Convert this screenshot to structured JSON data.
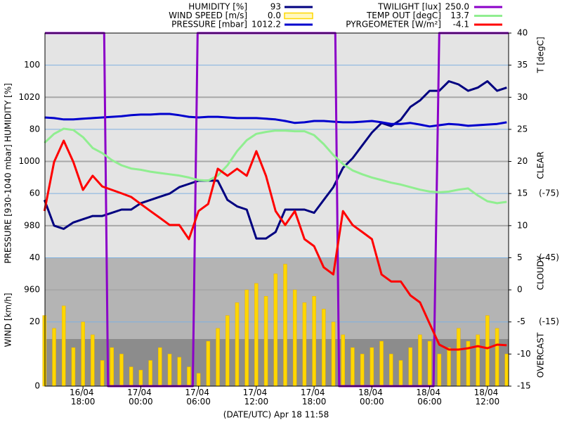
{
  "chart_data": {
    "type": "line",
    "x_label": "(DATE/UTC) Apr 18 11:58",
    "x": [
      14,
      15,
      16,
      17,
      18,
      19,
      20,
      21,
      22,
      23,
      24,
      25,
      26,
      27,
      28,
      29,
      30,
      31,
      32,
      33,
      34,
      35,
      36,
      37,
      38,
      39,
      40,
      41,
      42,
      43,
      44,
      45,
      46,
      47,
      48,
      49,
      50,
      51,
      52,
      53,
      54,
      55,
      56,
      57,
      58,
      59,
      60,
      61,
      62
    ],
    "xlim": [
      14.05,
      62.2
    ],
    "xticks": [
      {
        "value": 18,
        "label": "16/04 18:00"
      },
      {
        "value": 24,
        "label": "17/04 00:00"
      },
      {
        "value": 30,
        "label": "17/04 06:00"
      },
      {
        "value": 36,
        "label": "17/04 12:00"
      },
      {
        "value": 42,
        "label": "17/04 18:00"
      },
      {
        "value": 48,
        "label": "18/04 00:00"
      },
      {
        "value": 54,
        "label": "18/04 06:00"
      },
      {
        "value": 60,
        "label": "18/04 12:00"
      }
    ],
    "axes": {
      "humidity": {
        "title": "HUMIDITY [%]",
        "ylim": [
          0,
          110
        ],
        "yticks": [
          40,
          60,
          80,
          100
        ]
      },
      "pressure": {
        "title": "PRESSURE [930-1040 mbar]",
        "ylim": [
          930,
          1040
        ],
        "yticks": [
          960,
          980,
          1000,
          1020
        ]
      },
      "wind": {
        "title": "WIND [km/h]",
        "ylim": [
          0,
          110
        ],
        "yticks": [
          0,
          20
        ]
      },
      "temp": {
        "title": "T [degC]",
        "ylim": [
          -15,
          40
        ],
        "yticks": [
          40,
          35,
          30,
          25,
          20,
          15,
          10,
          5,
          0,
          -5,
          -10,
          -15
        ]
      },
      "pyr": {
        "ylim": [
          15,
          -150
        ],
        "yticks": [
          {
            "value": -75,
            "label": "(-75)"
          },
          {
            "value": -45,
            "label": "(-45)"
          },
          {
            "value": -15,
            "label": "(-15)"
          }
        ]
      },
      "twilight": {
        "ylim": [
          0,
          250
        ]
      }
    },
    "sky_labels": [
      "CLEAR",
      "CLOUDY",
      "OVERCAST"
    ],
    "series": [
      {
        "name": "HUMIDITY [%]",
        "color": "#000080",
        "axis": "humidity",
        "current": 93,
        "values": [
          58,
          50,
          49,
          51,
          52,
          53,
          53,
          54,
          55,
          55,
          57,
          58,
          59,
          60,
          62,
          63,
          64,
          64,
          64,
          58,
          56,
          55,
          46,
          46,
          48,
          55,
          55,
          55,
          54,
          58,
          62,
          68,
          71,
          75,
          79,
          82,
          81,
          83,
          87,
          89,
          92,
          92,
          95,
          94,
          92,
          93,
          95,
          92,
          93
        ]
      },
      {
        "name": "WIND SPEED [m/s]",
        "color": "#ffd700",
        "axis": "wind",
        "type": "bar",
        "current": 0,
        "current_label": "0.0",
        "values": [
          22,
          18,
          25,
          12,
          20,
          16,
          8,
          12,
          10,
          6,
          5,
          8,
          12,
          10,
          9,
          6,
          4,
          14,
          18,
          22,
          26,
          30,
          32,
          28,
          35,
          38,
          30,
          26,
          28,
          24,
          20,
          16,
          12,
          10,
          12,
          14,
          10,
          8,
          12,
          16,
          14,
          10,
          12,
          18,
          14,
          16,
          22,
          18,
          10
        ]
      },
      {
        "name": "PRESSURE [mbar]",
        "color": "#0000cd",
        "axis": "pressure",
        "current": 1012.2,
        "values": [
          1013.7,
          1013.5,
          1013.1,
          1013.1,
          1013.3,
          1013.5,
          1013.7,
          1013.9,
          1014.1,
          1014.4,
          1014.6,
          1014.6,
          1014.8,
          1014.8,
          1014.4,
          1013.9,
          1013.7,
          1013.9,
          1013.9,
          1013.7,
          1013.5,
          1013.5,
          1013.5,
          1013.3,
          1013.1,
          1012.6,
          1012.0,
          1012.2,
          1012.6,
          1012.6,
          1012.4,
          1012.2,
          1012.2,
          1012.4,
          1012.6,
          1012.2,
          1011.7,
          1011.7,
          1012.0,
          1011.5,
          1010.9,
          1011.3,
          1011.7,
          1011.5,
          1011.1,
          1011.3,
          1011.5,
          1011.7,
          1012.2
        ]
      },
      {
        "name": "TWILIGHT [lux]",
        "color": "#8b00c8",
        "axis": "twilight",
        "current": 250,
        "current_label": "250.0",
        "x": [
          14.05,
          20.2,
          20.6,
          29.4,
          29.9,
          44.2,
          44.6,
          54.4,
          55.0,
          62.2
        ],
        "values": [
          250,
          250,
          0,
          0,
          250,
          250,
          0,
          0,
          250,
          250
        ]
      },
      {
        "name": "TEMP OUT [degC]",
        "color": "#90ee90",
        "axis": "temp",
        "current": 13.7,
        "values": [
          22.9,
          24.3,
          25.1,
          24.9,
          23.8,
          22.1,
          21.3,
          20.2,
          19.4,
          18.9,
          18.7,
          18.4,
          18.2,
          18.0,
          17.8,
          17.5,
          17.1,
          17.0,
          17.8,
          19.4,
          21.6,
          23.3,
          24.3,
          24.6,
          24.8,
          24.8,
          24.7,
          24.7,
          24.1,
          22.7,
          21.0,
          19.6,
          18.6,
          18.0,
          17.5,
          17.1,
          16.7,
          16.4,
          16.0,
          15.6,
          15.3,
          15.2,
          15.3,
          15.6,
          15.8,
          14.7,
          13.8,
          13.5,
          13.7
        ]
      },
      {
        "name": "PYRGEOMETER [W/m²]",
        "color": "#ff0000",
        "axis": "pyr",
        "current": -4.1,
        "values": [
          -66.8,
          -89.8,
          -99.7,
          -89.8,
          -76.7,
          -83.3,
          -78.3,
          -76.7,
          -75.1,
          -73.4,
          -70.1,
          -66.8,
          -63.6,
          -60.3,
          -60.3,
          -53.7,
          -66.8,
          -70.1,
          -86.6,
          -83.3,
          -86.6,
          -83.3,
          -94.8,
          -83.3,
          -66.8,
          -60.3,
          -66.8,
          -53.7,
          -50.4,
          -40.5,
          -37.2,
          -66.8,
          -60.3,
          -57,
          -53.7,
          -37.2,
          -33.9,
          -33.9,
          -27.4,
          -24.1,
          -14.2,
          -4.4,
          -2.1,
          -2.1,
          -2.7,
          -3.7,
          -2.7,
          -4.4,
          -4.1
        ]
      }
    ]
  }
}
